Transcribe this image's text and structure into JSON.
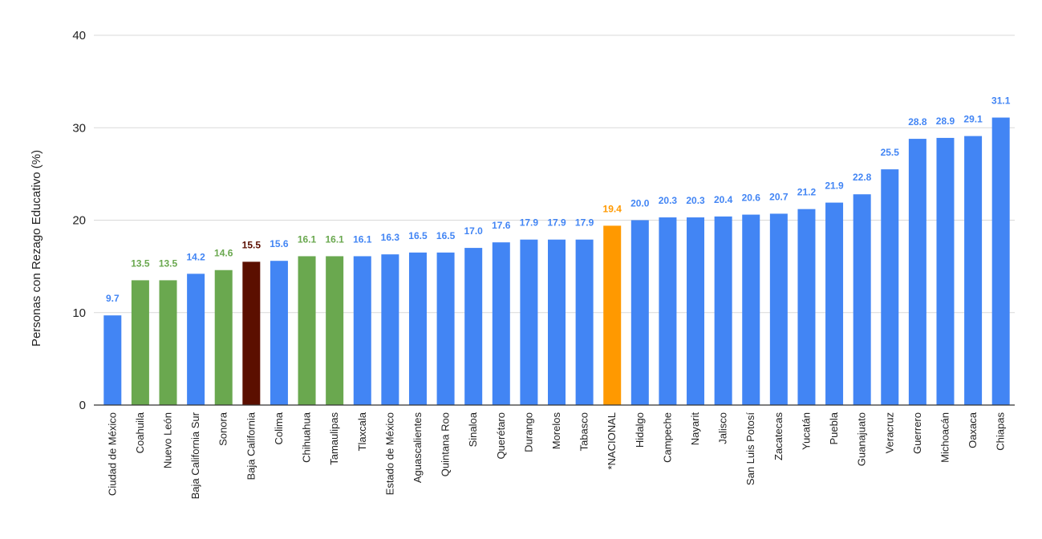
{
  "chart_data": {
    "type": "bar",
    "title": "",
    "xlabel": "",
    "ylabel": "Personas con Rezago Educativo (%)",
    "ylim": [
      0,
      40
    ],
    "yticks": [
      0,
      10,
      20,
      30,
      40
    ],
    "grid": true,
    "legend": "none",
    "categories": [
      "Ciudad de México",
      "Coahuila",
      "Nuevo León",
      "Baja California Sur",
      "Sonora",
      "Baja California",
      "Colima",
      "Chihuahua",
      "Tamaulipas",
      "Tlaxcala",
      "Estado de México",
      "Aguascalientes",
      "Quintana Roo",
      "Sinaloa",
      "Querétaro",
      "Durango",
      "Morelos",
      "Tabasco",
      "*NACIONAL",
      "Hidalgo",
      "Campeche",
      "Nayarit",
      "Jalisco",
      "San Luis Potosí",
      "Zacatecas",
      "Yucatán",
      "Puebla",
      "Guanajuato",
      "Veracruz",
      "Guerrero",
      "Michoacán",
      "Oaxaca",
      "Chiapas"
    ],
    "values": [
      9.7,
      13.5,
      13.5,
      14.2,
      14.6,
      15.5,
      15.6,
      16.1,
      16.1,
      16.1,
      16.3,
      16.5,
      16.5,
      17.0,
      17.6,
      17.9,
      17.9,
      17.9,
      19.4,
      20.0,
      20.3,
      20.3,
      20.4,
      20.6,
      20.7,
      21.2,
      21.9,
      22.8,
      25.5,
      28.8,
      28.9,
      29.1,
      31.1
    ],
    "value_labels": [
      "9.7",
      "13.5",
      "13.5",
      "14.2",
      "14.6",
      "15.5",
      "15.6",
      "16.1",
      "16.1",
      "16.1",
      "16.3",
      "16.5",
      "16.5",
      "17.0",
      "17.6",
      "17.9",
      "17.9",
      "17.9",
      "19.4",
      "20.0",
      "20.3",
      "20.3",
      "20.4",
      "20.6",
      "20.7",
      "21.2",
      "21.9",
      "22.8",
      "25.5",
      "28.8",
      "28.9",
      "29.1",
      "31.1"
    ],
    "colors": [
      "#4285F4",
      "#6AA84F",
      "#6AA84F",
      "#4285F4",
      "#6AA84F",
      "#5B0F00",
      "#4285F4",
      "#6AA84F",
      "#6AA84F",
      "#4285F4",
      "#4285F4",
      "#4285F4",
      "#4285F4",
      "#4285F4",
      "#4285F4",
      "#4285F4",
      "#4285F4",
      "#4285F4",
      "#FF9900",
      "#4285F4",
      "#4285F4",
      "#4285F4",
      "#4285F4",
      "#4285F4",
      "#4285F4",
      "#4285F4",
      "#4285F4",
      "#4285F4",
      "#4285F4",
      "#4285F4",
      "#4285F4",
      "#4285F4",
      "#4285F4"
    ],
    "label_colors": [
      "#4285F4",
      "#6AA84F",
      "#6AA84F",
      "#4285F4",
      "#6AA84F",
      "#5B0F00",
      "#4285F4",
      "#6AA84F",
      "#6AA84F",
      "#4285F4",
      "#4285F4",
      "#4285F4",
      "#4285F4",
      "#4285F4",
      "#4285F4",
      "#4285F4",
      "#4285F4",
      "#4285F4",
      "#FF9900",
      "#4285F4",
      "#4285F4",
      "#4285F4",
      "#4285F4",
      "#4285F4",
      "#4285F4",
      "#4285F4",
      "#4285F4",
      "#4285F4",
      "#4285F4",
      "#4285F4",
      "#4285F4",
      "#4285F4",
      "#4285F4"
    ],
    "gridline_color": "#D9D9D9",
    "axis_color": "#333333"
  }
}
